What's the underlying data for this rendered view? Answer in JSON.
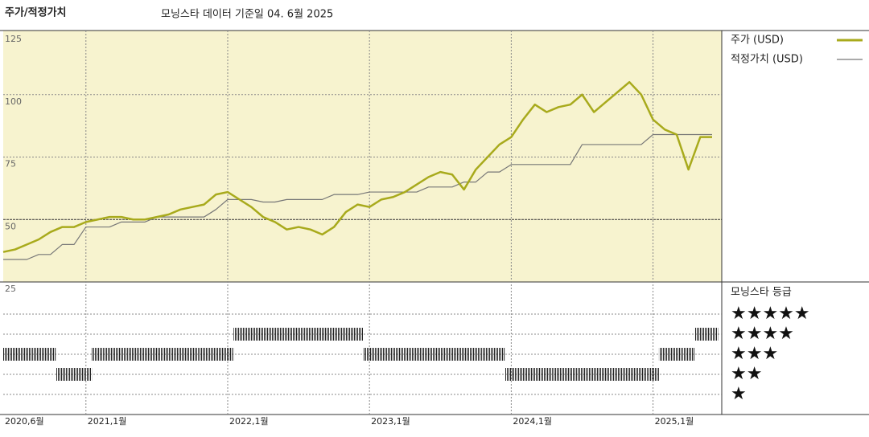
{
  "chart_data": {
    "type": "line",
    "title": "주가/적정가치",
    "subtitle": "모닝스타 데이터 기준일 04. 6월 2025",
    "categories": [
      "2020-06",
      "2020-07",
      "2020-08",
      "2020-09",
      "2020-10",
      "2020-11",
      "2020-12",
      "2021-01",
      "2021-02",
      "2021-03",
      "2021-04",
      "2021-05",
      "2021-06",
      "2021-07",
      "2021-08",
      "2021-09",
      "2021-10",
      "2021-11",
      "2021-12",
      "2022-01",
      "2022-02",
      "2022-03",
      "2022-04",
      "2022-05",
      "2022-06",
      "2022-07",
      "2022-08",
      "2022-09",
      "2022-10",
      "2022-11",
      "2022-12",
      "2023-01",
      "2023-02",
      "2023-03",
      "2023-04",
      "2023-05",
      "2023-06",
      "2023-07",
      "2023-08",
      "2023-09",
      "2023-10",
      "2023-11",
      "2023-12",
      "2024-01",
      "2024-02",
      "2024-03",
      "2024-04",
      "2024-05",
      "2024-06",
      "2024-07",
      "2024-08",
      "2024-09",
      "2024-10",
      "2024-11",
      "2024-12",
      "2025-01",
      "2025-02",
      "2025-03",
      "2025-04",
      "2025-05",
      "2025-06"
    ],
    "series": [
      {
        "name": "주가 (USD)",
        "color": "#a8aa1c",
        "values": [
          37,
          38,
          40,
          42,
          45,
          47,
          47,
          49,
          50,
          51,
          51,
          50,
          50,
          51,
          52,
          54,
          55,
          56,
          60,
          61,
          58,
          55,
          51,
          49,
          46,
          47,
          46,
          44,
          47,
          53,
          56,
          55,
          58,
          59,
          61,
          64,
          67,
          69,
          68,
          62,
          70,
          75,
          80,
          83,
          90,
          96,
          93,
          95,
          96,
          100,
          93,
          97,
          101,
          105,
          100,
          90,
          86,
          84,
          70,
          83,
          83
        ]
      },
      {
        "name": "적정가치 (USD)",
        "color": "#777777",
        "values": [
          34,
          34,
          34,
          36,
          36,
          40,
          40,
          47,
          47,
          47,
          49,
          49,
          49,
          51,
          51,
          51,
          51,
          51,
          54,
          58,
          58,
          58,
          57,
          57,
          58,
          58,
          58,
          58,
          60,
          60,
          60,
          61,
          61,
          61,
          61,
          61,
          63,
          63,
          63,
          65,
          65,
          69,
          69,
          72,
          72,
          72,
          72,
          72,
          72,
          80,
          80,
          80,
          80,
          80,
          80,
          84,
          84,
          84,
          84,
          84,
          84
        ]
      }
    ],
    "ylim": [
      25,
      125
    ],
    "yticks": [
      25,
      50,
      75,
      100,
      125
    ],
    "xticks": [
      {
        "value": "2020-06",
        "label": "2020,6월"
      },
      {
        "value": "2021-01",
        "label": "2021,1월"
      },
      {
        "value": "2022-01",
        "label": "2022,1월"
      },
      {
        "value": "2023-01",
        "label": "2023,1월"
      },
      {
        "value": "2024-01",
        "label": "2024,1월"
      },
      {
        "value": "2025-01",
        "label": "2025,1월"
      }
    ],
    "rating_title": "모닝스타 등급",
    "rating_ticks": [
      {
        "value": 5,
        "label": "★★★★★"
      },
      {
        "value": 4,
        "label": "★★★★"
      },
      {
        "value": 3,
        "label": "★★★"
      },
      {
        "value": 2,
        "label": "★★"
      },
      {
        "value": 1,
        "label": "★"
      }
    ],
    "ratings": [
      3,
      3,
      3,
      3,
      3,
      2,
      2,
      2,
      3,
      3,
      3,
      3,
      3,
      3,
      3,
      3,
      3,
      3,
      3,
      3,
      4,
      4,
      4,
      4,
      4,
      4,
      4,
      4,
      4,
      4,
      4,
      3,
      3,
      3,
      3,
      3,
      3,
      3,
      3,
      3,
      3,
      3,
      3,
      2,
      2,
      2,
      2,
      2,
      2,
      2,
      2,
      2,
      2,
      2,
      2,
      2,
      3,
      3,
      3,
      4,
      4
    ],
    "panel_color": "#f7f3cf"
  }
}
